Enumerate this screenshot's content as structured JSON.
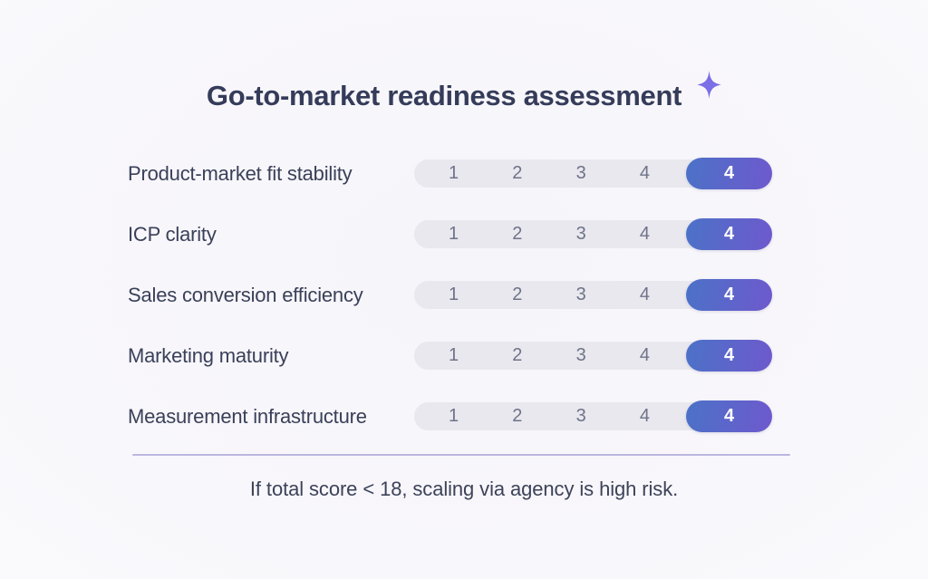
{
  "chart_data": {
    "type": "table",
    "title": "Go-to-market readiness assessment",
    "categories": [
      "Product-market fit stability",
      "ICP clarity",
      "Sales conversion efficiency",
      "Marketing maturity",
      "Measurement infrastructure"
    ],
    "scale": [
      "1",
      "2",
      "3",
      "4"
    ],
    "values": [
      "4",
      "4",
      "4",
      "4",
      "4"
    ],
    "scale_range": [
      1,
      4
    ],
    "note": "If total score < 18, scaling via agency is high risk.",
    "layout": "horizontal rating tracks, labels left, selected score pill at right end of each track"
  },
  "icons": {
    "sparkle": "sparkle-icon"
  },
  "colors": {
    "background": "#f7f6fa",
    "title_text": "#353c5a",
    "label_text": "#3a4059",
    "track_bg": "#e9e8ee",
    "scale_number": "#6e7389",
    "pill_gradient_start": "#4b72c7",
    "pill_gradient_end": "#6e59cd",
    "pill_text": "#ffffff",
    "divider": "#aba6d8",
    "sparkle": "#7b6ee6",
    "footer_text": "#3c4259"
  }
}
